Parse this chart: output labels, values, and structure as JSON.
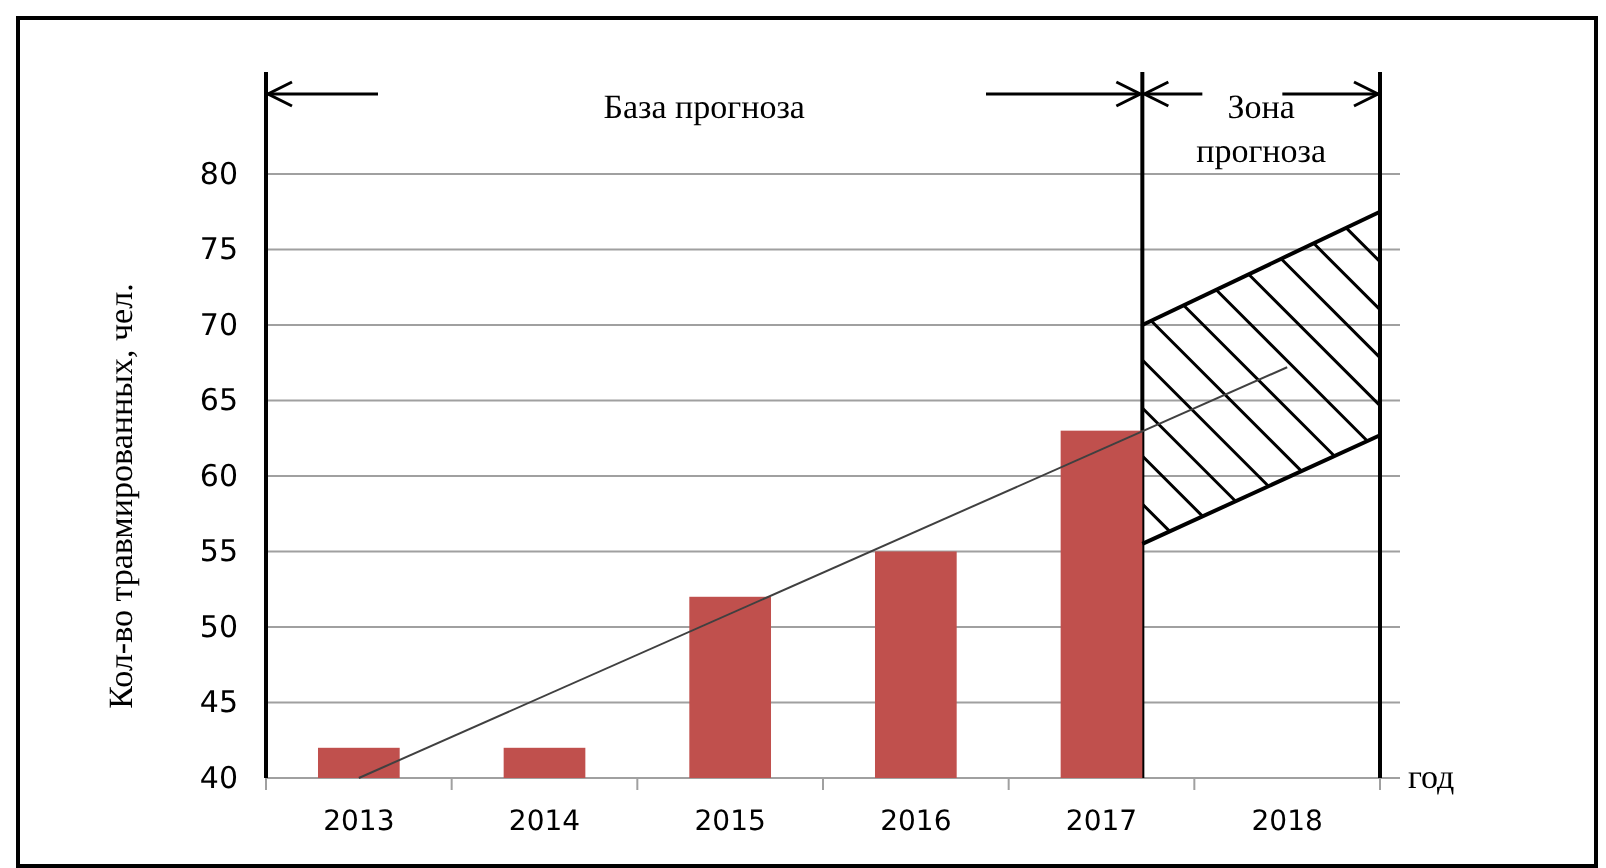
{
  "chart_data": {
    "type": "bar",
    "xlabel": "год",
    "ylabel": "Кол-во травмированных, чел.",
    "x": [
      2013,
      2014,
      2015,
      2016,
      2017
    ],
    "series": [
      {
        "color": "#c0504d",
        "values": [
          42,
          42,
          52,
          55,
          63
        ]
      },
      {
        "type": "line",
        "color": "#000000",
        "x": [
          2017.22,
          2018.5
        ],
        "values": [
          70,
          77.5
        ]
      },
      {
        "type": "line",
        "color": "#000000",
        "x": [
          2017.22,
          2018.5
        ],
        "values": [
          55.5,
          62.7
        ]
      },
      {
        "type": "line",
        "color": "#404040",
        "x": [
          2013,
          2018
        ],
        "values": [
          40,
          67.2
        ]
      }
    ],
    "xlim": [
      2012.5,
      2018.5
    ],
    "xticks": [
      {
        "value": 2012.5,
        "label": null
      },
      2013,
      {
        "value": 2013.5,
        "label": null
      },
      2014,
      {
        "value": 2014.5,
        "label": null
      },
      2015,
      {
        "value": 2015.5,
        "label": null
      },
      2016,
      {
        "value": 2016.5,
        "label": null
      },
      2017,
      {
        "value": 2017.5,
        "label": null
      },
      2018,
      {
        "value": 2018.5,
        "label": null
      }
    ],
    "ref_lines": [
      {
        "axis": "x",
        "value": 2017.22,
        "color": "#000000"
      }
    ],
    "ylim": [
      40,
      86.75
    ],
    "yticks": [
      40,
      45,
      50,
      55,
      60,
      65,
      70,
      75,
      80
    ],
    "grid": "y",
    "annotations": [
      "База прогноза",
      "Зона прогноза"
    ]
  }
}
